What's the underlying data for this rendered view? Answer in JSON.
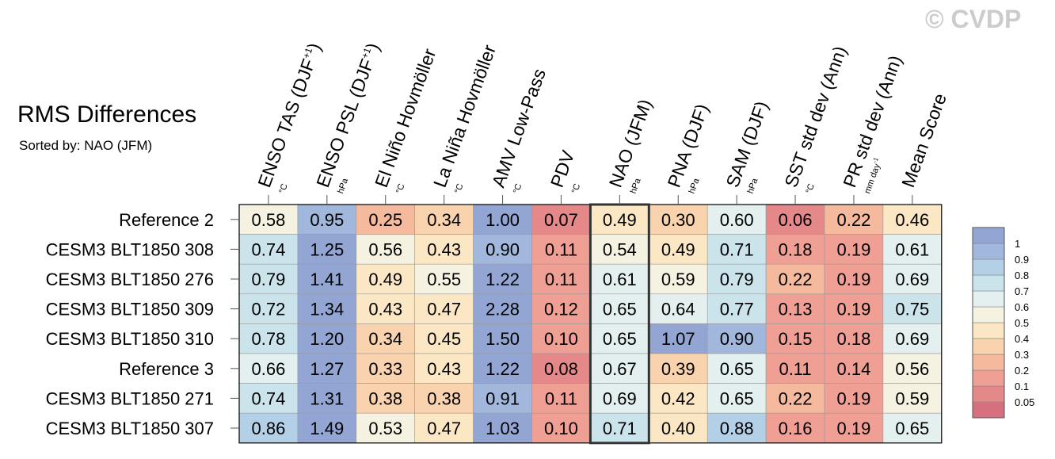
{
  "watermark": "© CVDP",
  "chart_data": {
    "type": "heatmap",
    "title": "RMS Differences",
    "subtitle": "Sorted by: NAO (JFM)",
    "columns": [
      {
        "label": "ENSO TAS (DJF",
        "sup": "+1",
        "close": ")",
        "unit": "°C"
      },
      {
        "label": "ENSO PSL (DJF",
        "sup": "+1",
        "close": ")",
        "unit": "hPa"
      },
      {
        "label": "El Niño Hovmöller",
        "unit": "°C"
      },
      {
        "label": "La Niña Hovmöller",
        "unit": "°C"
      },
      {
        "label": "AMV Low-Pass",
        "unit": "°C"
      },
      {
        "label": "PDV",
        "unit": "°C"
      },
      {
        "label": "NAO (JFM)",
        "unit": "hPa"
      },
      {
        "label": "PNA (DJF)",
        "unit": "hPa"
      },
      {
        "label": "SAM (DJF)",
        "unit": "hPa"
      },
      {
        "label": "SST std dev (Ann)",
        "unit": "°C"
      },
      {
        "label": "PR std dev (Ann)",
        "unit": "mm day",
        "unit_sup": "-1"
      },
      {
        "label": "Mean Score",
        "unit": ""
      }
    ],
    "rows": [
      "Reference 2",
      "CESM3 BLT1850 308",
      "CESM3 BLT1850 276",
      "CESM3 BLT1850 309",
      "CESM3 BLT1850 310",
      "Reference 3",
      "CESM3 BLT1850 271",
      "CESM3 BLT1850 307"
    ],
    "values": [
      [
        "0.58",
        "0.95",
        "0.25",
        "0.34",
        "1.00",
        "0.07",
        "0.49",
        "0.30",
        "0.60",
        "0.06",
        "0.22",
        "0.46"
      ],
      [
        "0.74",
        "1.25",
        "0.56",
        "0.43",
        "0.90",
        "0.11",
        "0.54",
        "0.49",
        "0.71",
        "0.18",
        "0.19",
        "0.61"
      ],
      [
        "0.79",
        "1.41",
        "0.49",
        "0.55",
        "1.22",
        "0.11",
        "0.61",
        "0.59",
        "0.79",
        "0.22",
        "0.19",
        "0.69"
      ],
      [
        "0.72",
        "1.34",
        "0.43",
        "0.47",
        "2.28",
        "0.12",
        "0.65",
        "0.64",
        "0.77",
        "0.13",
        "0.19",
        "0.75"
      ],
      [
        "0.78",
        "1.20",
        "0.34",
        "0.45",
        "1.50",
        "0.10",
        "0.65",
        "1.07",
        "0.90",
        "0.15",
        "0.18",
        "0.69"
      ],
      [
        "0.66",
        "1.27",
        "0.33",
        "0.43",
        "1.22",
        "0.08",
        "0.67",
        "0.39",
        "0.65",
        "0.11",
        "0.14",
        "0.56"
      ],
      [
        "0.74",
        "1.31",
        "0.38",
        "0.38",
        "0.91",
        "0.11",
        "0.69",
        "0.42",
        "0.65",
        "0.22",
        "0.19",
        "0.59"
      ],
      [
        "0.86",
        "1.49",
        "0.53",
        "0.47",
        "1.03",
        "0.10",
        "0.71",
        "0.40",
        "0.88",
        "0.16",
        "0.19",
        "0.65"
      ]
    ],
    "highlight_column": 6,
    "colorbar": {
      "levels": [
        0.05,
        0.1,
        0.2,
        0.3,
        0.4,
        0.5,
        0.6,
        0.7,
        0.8,
        0.9,
        1
      ],
      "labels": [
        "0.05",
        "0.1",
        "0.2",
        "0.3",
        "0.4",
        "0.5",
        "0.6",
        "0.7",
        "0.8",
        "0.9",
        "1"
      ],
      "colors": [
        "#d6707e",
        "#e4888a",
        "#ef9f94",
        "#f5b99d",
        "#f9d2ae",
        "#fbe7c3",
        "#f5f2e2",
        "#e3f0ef",
        "#cbe4ec",
        "#b3d0e7",
        "#a2b7dc",
        "#93a6d3"
      ]
    }
  }
}
